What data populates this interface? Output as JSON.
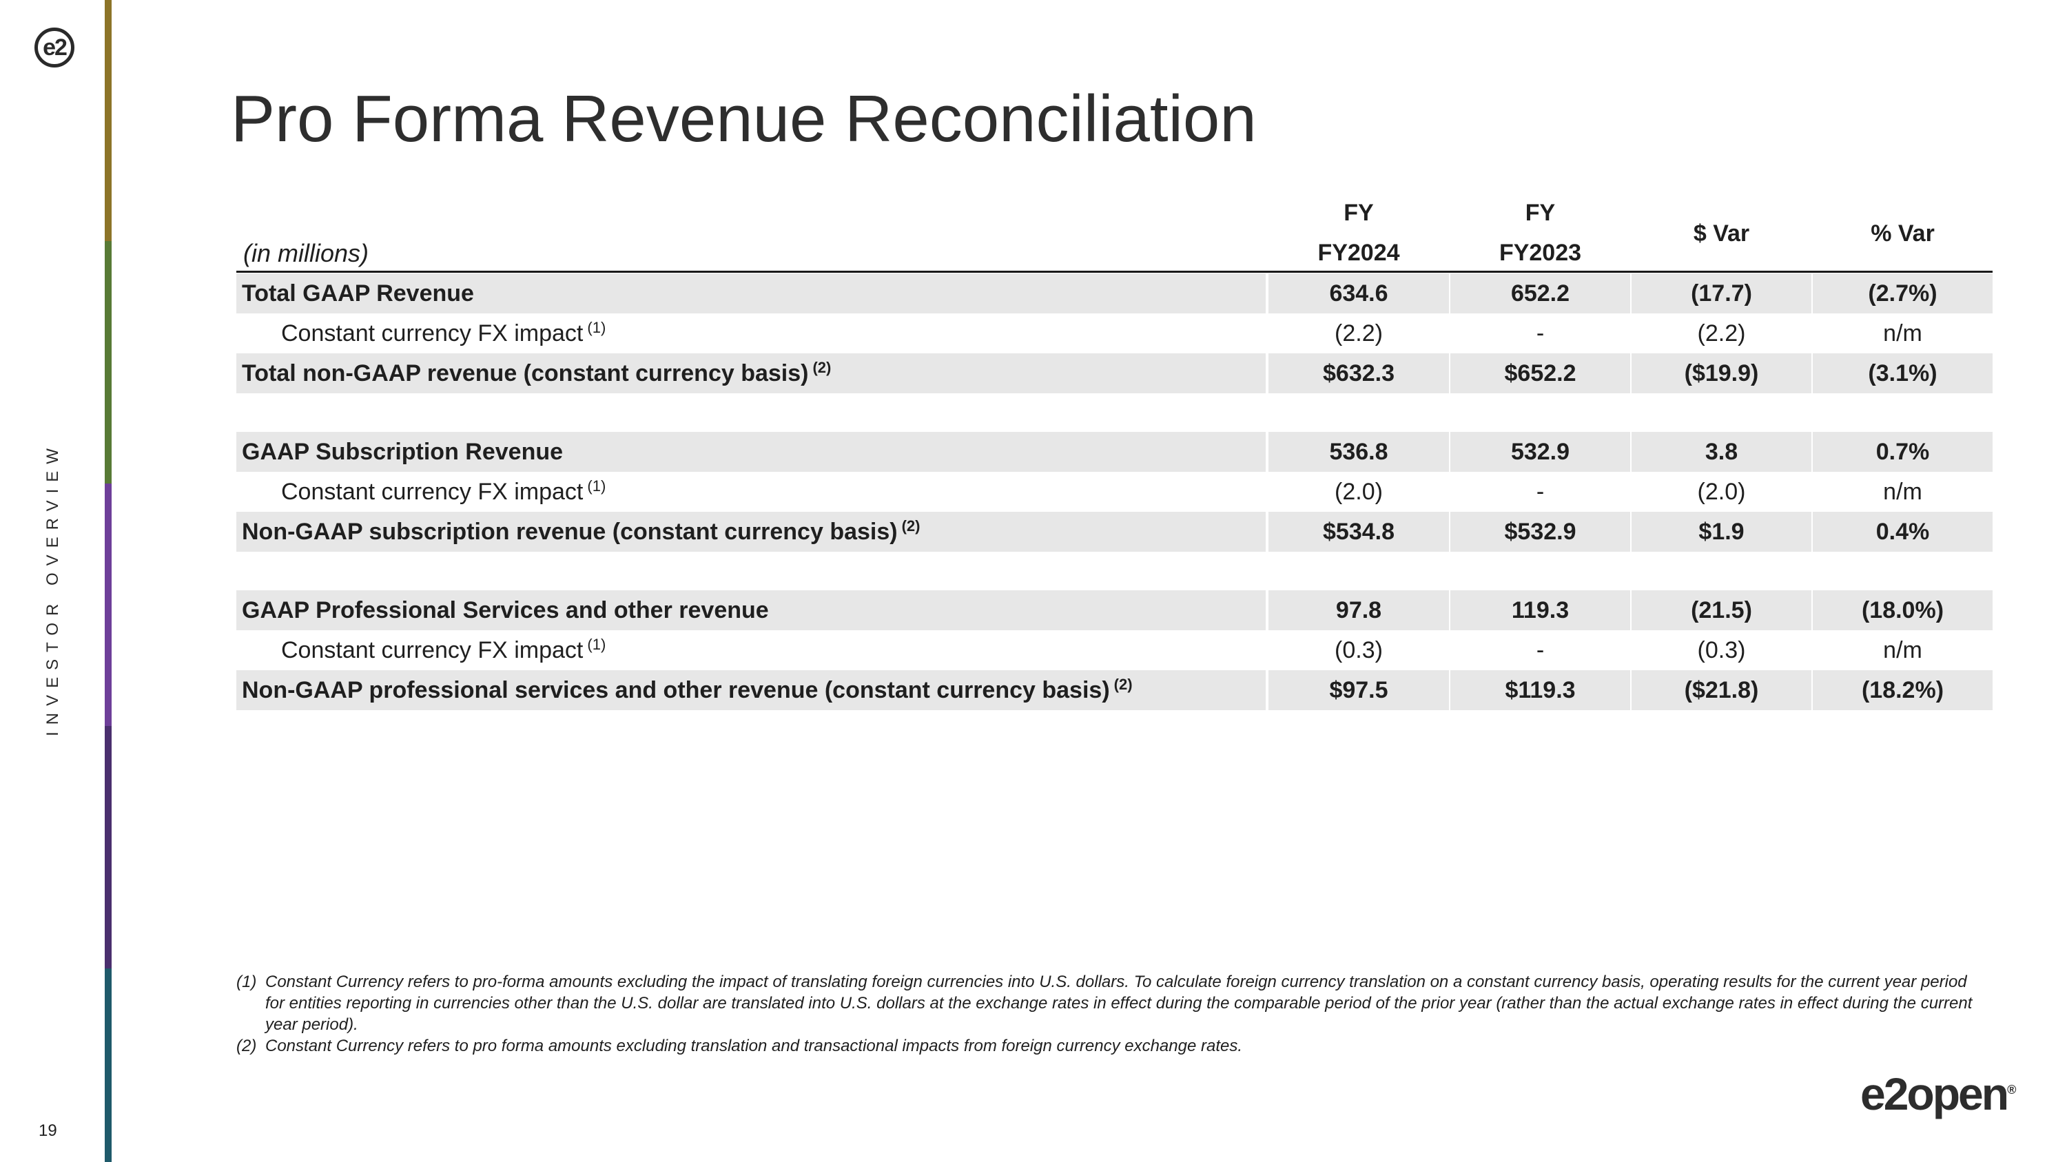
{
  "logo_text": "e2",
  "side_label": "INVESTOR OVERVIEW",
  "page_number": "19",
  "title": "Pro Forma Revenue Reconciliation",
  "table": {
    "units_label": "(in millions)",
    "headers": {
      "col1_top": "FY",
      "col1_bottom": "FY2024",
      "col2_top": "FY",
      "col2_bottom": "FY2023",
      "col3": "$ Var",
      "col4": "% Var"
    },
    "rows": [
      {
        "label": "Total GAAP Revenue",
        "sup": "",
        "v1": "634.6",
        "v2": "652.2",
        "v3": "(17.7)",
        "v4": "(2.7%)"
      },
      {
        "label": "Constant currency FX impact",
        "sup": "(1)",
        "v1": "(2.2)",
        "v2": "-",
        "v3": "(2.2)",
        "v4": "n/m"
      },
      {
        "label": "Total non-GAAP revenue (constant currency basis)",
        "sup": "(2)",
        "v1": "$632.3",
        "v2": "$652.2",
        "v3": "($19.9)",
        "v4": "(3.1%)"
      },
      {
        "label": "GAAP Subscription Revenue",
        "sup": "",
        "v1": "536.8",
        "v2": "532.9",
        "v3": "3.8",
        "v4": "0.7%"
      },
      {
        "label": "Constant currency FX impact",
        "sup": "(1)",
        "v1": "(2.0)",
        "v2": "-",
        "v3": "(2.0)",
        "v4": "n/m"
      },
      {
        "label": "Non-GAAP subscription revenue (constant currency basis)",
        "sup": "(2)",
        "v1": "$534.8",
        "v2": "$532.9",
        "v3": "$1.9",
        "v4": "0.4%"
      },
      {
        "label": "GAAP Professional Services and other revenue",
        "sup": "",
        "v1": "97.8",
        "v2": "119.3",
        "v3": "(21.5)",
        "v4": "(18.0%)"
      },
      {
        "label": "Constant currency FX impact",
        "sup": "(1)",
        "v1": "(0.3)",
        "v2": "-",
        "v3": "(0.3)",
        "v4": "n/m"
      },
      {
        "label": "Non-GAAP professional services and other revenue (constant currency basis)",
        "sup": "(2)",
        "v1": "$97.5",
        "v2": "$119.3",
        "v3": "($21.8)",
        "v4": "(18.2%)"
      }
    ]
  },
  "footnotes": [
    {
      "marker": "(1)",
      "text": "Constant Currency refers to pro-forma amounts excluding the impact of translating foreign currencies into U.S. dollars. To calculate foreign currency translation on a constant currency basis, operating results for the current year period for entities reporting in currencies other than the U.S. dollar are translated into U.S. dollars at the exchange rates in effect during the comparable period of the prior year (rather than the actual exchange rates in effect during the current year period)."
    },
    {
      "marker": "(2)",
      "text": "Constant Currency refers to pro forma amounts excluding translation and transactional impacts from foreign currency exchange rates."
    }
  ],
  "brand_name": "e2open",
  "brand_mark": "®"
}
